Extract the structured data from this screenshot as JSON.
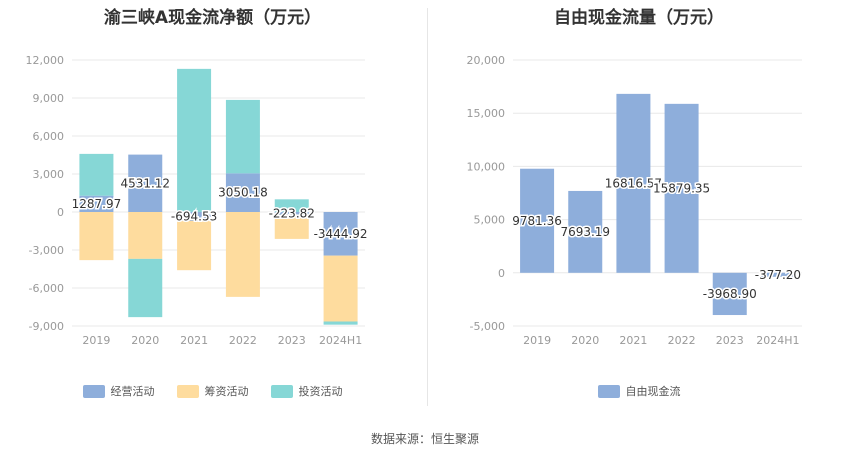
{
  "chart_data": [
    {
      "type": "bar",
      "stacked": true,
      "title": "渝三峡A现金流净额（万元）",
      "categories": [
        "2019",
        "2020",
        "2021",
        "2022",
        "2023",
        "2024H1"
      ],
      "ylim": [
        -9000,
        12000
      ],
      "yticks": [
        "12,000",
        "9,000",
        "6,000",
        "3,000",
        "0",
        "-3,000",
        "-6,000",
        "-9,000"
      ],
      "ytick_values": [
        12000,
        9000,
        6000,
        3000,
        0,
        -3000,
        -6000,
        -9000
      ],
      "grid": true,
      "legend_position": "bottom",
      "series": [
        {
          "name": "经营活动",
          "color": "#8eaedb",
          "values": [
            1287.97,
            4531.12,
            -694.53,
            3050.18,
            -223.82,
            -3444.92
          ],
          "labels": [
            "1287.97",
            "4531.12",
            "-694.53",
            "3050.18",
            "-223.82",
            "-3444.92"
          ]
        },
        {
          "name": "筹资活动",
          "color": "#fedc9e",
          "values": [
            -3800,
            -3700,
            -3900,
            -6700,
            -1900,
            -5200
          ]
        },
        {
          "name": "投资活动",
          "color": "#86d7d6",
          "values": [
            3300,
            -4600,
            11300,
            5800,
            1000,
            -250
          ]
        }
      ]
    },
    {
      "type": "bar",
      "title": "自由现金流量（万元）",
      "categories": [
        "2019",
        "2020",
        "2021",
        "2022",
        "2023",
        "2024H1"
      ],
      "ylim": [
        -5000,
        20000
      ],
      "yticks": [
        "20,000",
        "15,000",
        "10,000",
        "5,000",
        "0",
        "-5,000"
      ],
      "ytick_values": [
        20000,
        15000,
        10000,
        5000,
        0,
        -5000
      ],
      "grid": true,
      "legend_position": "bottom",
      "series": [
        {
          "name": "自由现金流",
          "color": "#8eaedb",
          "values": [
            9781.36,
            7693.19,
            16816.57,
            15879.35,
            -3968.9,
            -377.2
          ],
          "labels": [
            "9781.36",
            "7693.19",
            "16816.57",
            "15879.35",
            "-3968.90",
            "-377.20"
          ]
        }
      ]
    }
  ],
  "source": "数据来源：恒生聚源"
}
